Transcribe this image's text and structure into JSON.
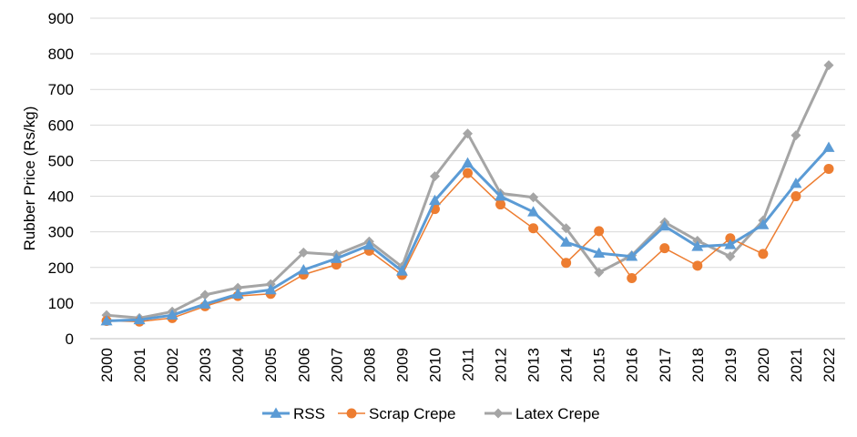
{
  "chart_data": {
    "type": "line",
    "title": "",
    "xlabel": "",
    "ylabel": "Rubber Price (Rs/kg)",
    "ylim": [
      0,
      900
    ],
    "yticks": [
      0,
      100,
      200,
      300,
      400,
      500,
      600,
      700,
      800,
      900
    ],
    "grid": true,
    "legend_position": "bottom",
    "categories": [
      "2000",
      "2001",
      "2002",
      "2003",
      "2004",
      "2005",
      "2006",
      "2007",
      "2008",
      "2009",
      "2010",
      "2011",
      "2012",
      "2013",
      "2014",
      "2015",
      "2016",
      "2017",
      "2018",
      "2019",
      "2020",
      "2021",
      "2022"
    ],
    "series": [
      {
        "name": "RSS",
        "color": "#5b9bd5",
        "marker": "triangle",
        "values": [
          50,
          53,
          66,
          97,
          125,
          137,
          193,
          225,
          262,
          190,
          388,
          493,
          400,
          356,
          271,
          240,
          231,
          316,
          259,
          264,
          320,
          436,
          537
        ]
      },
      {
        "name": "Scrap Crepe",
        "color": "#ed7d31",
        "marker": "circle",
        "values": [
          50,
          48,
          58,
          91,
          120,
          126,
          180,
          208,
          247,
          179,
          364,
          465,
          377,
          310,
          213,
          302,
          170,
          254,
          205,
          282,
          238,
          400,
          477
        ]
      },
      {
        "name": "Latex Crepe",
        "color": "#a5a5a5",
        "marker": "diamond",
        "values": [
          66,
          58,
          76,
          123,
          143,
          153,
          242,
          236,
          273,
          202,
          456,
          576,
          408,
          397,
          310,
          186,
          234,
          327,
          275,
          231,
          332,
          571,
          768
        ]
      }
    ]
  }
}
